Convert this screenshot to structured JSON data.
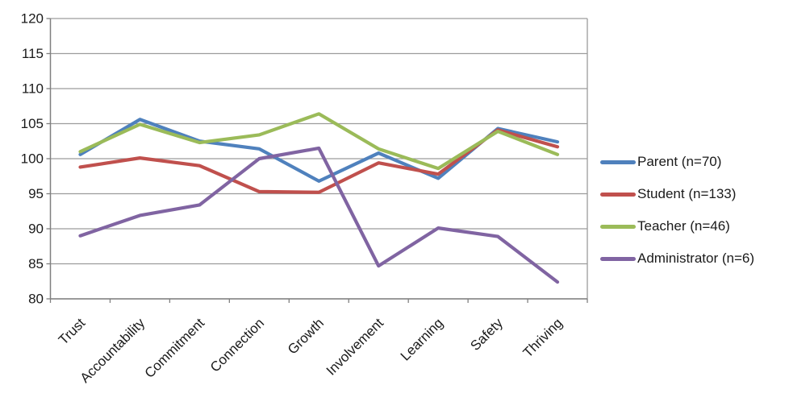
{
  "chart_data": {
    "type": "line",
    "title": "",
    "xlabel": "",
    "ylabel": "",
    "categories": [
      "Trust",
      "Accountability",
      "Commitment",
      "Connection",
      "Growth",
      "Involvement",
      "Learning",
      "Safety",
      "Thriving"
    ],
    "series": [
      {
        "name": "Parent (n=70)",
        "color": "#4F81BD",
        "values": [
          100.6,
          105.6,
          102.5,
          101.4,
          96.8,
          100.8,
          97.2,
          104.3,
          102.4
        ]
      },
      {
        "name": "Student (n=133)",
        "color": "#C0504D",
        "values": [
          98.8,
          100.1,
          99.0,
          95.3,
          95.2,
          99.4,
          97.8,
          104.1,
          101.7
        ]
      },
      {
        "name": "Teacher (n=46)",
        "color": "#9BBB59",
        "values": [
          101.0,
          104.9,
          102.3,
          103.4,
          106.4,
          101.4,
          98.6,
          103.9,
          100.6
        ]
      },
      {
        "name": "Administrator (n=6)",
        "color": "#8064A2",
        "values": [
          89.0,
          91.9,
          93.4,
          100.0,
          101.5,
          84.7,
          90.1,
          88.9,
          82.4
        ]
      }
    ],
    "ylim": [
      80,
      120
    ],
    "y_ticks": [
      80,
      85,
      90,
      95,
      100,
      105,
      110,
      115,
      120
    ],
    "x_tick_style": "between-categories",
    "x_label_rotation_deg": -45,
    "grid": true,
    "legend_position": "right",
    "colors": {
      "grid_line": "#9c9c9c",
      "axis_line": "#808080",
      "plot_border": "#9c9c9c",
      "label_text": "#1a1a1a",
      "background": "#ffffff"
    }
  }
}
